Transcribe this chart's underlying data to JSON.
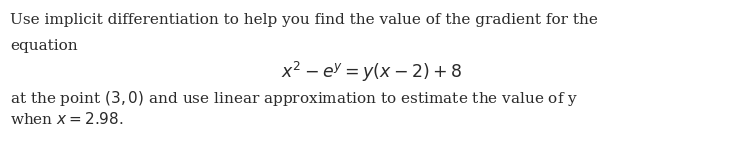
{
  "line1": "Use implicit differentiation to help you find the value of the gradient for the",
  "line2": "equation",
  "equation": "$x^2 - e^y = y(x - 2) + 8$",
  "line3": "at the point $(3, 0)$ and use linear approximation to estimate the value of y",
  "line4": "when $x = 2.98$.",
  "background_color": "#ffffff",
  "text_color": "#2a2a2a",
  "font_size": 11.0,
  "eq_font_size": 12.5,
  "fig_width": 7.44,
  "fig_height": 1.61,
  "dpi": 100
}
